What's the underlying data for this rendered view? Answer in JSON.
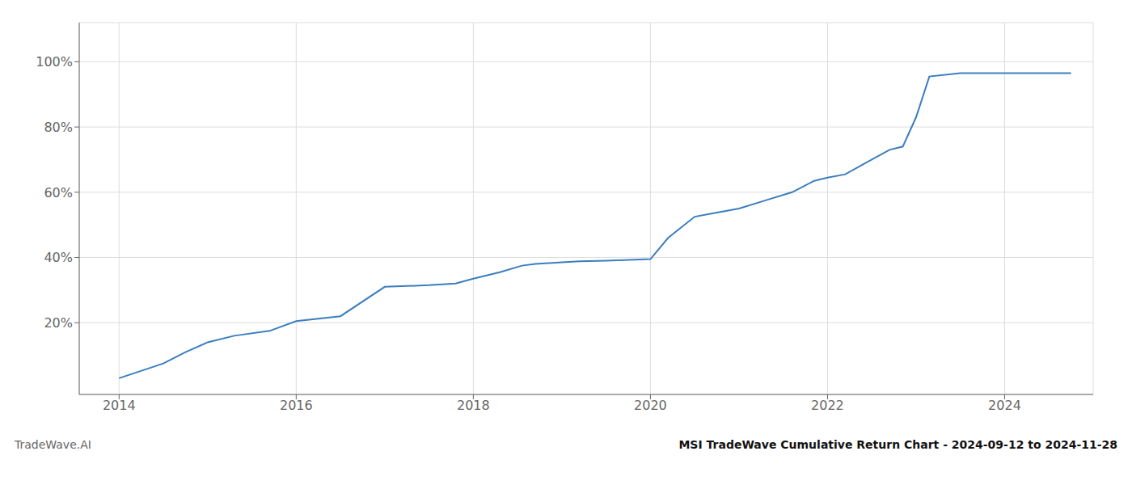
{
  "chart_data": {
    "type": "line",
    "title": "MSI TradeWave Cumulative Return Chart - 2024-09-12 to 2024-11-28",
    "annotations": [
      "TradeWave.AI"
    ],
    "x": [
      2014.0,
      2014.5,
      2014.75,
      2015.0,
      2015.3,
      2015.7,
      2016.0,
      2016.5,
      2017.0,
      2017.5,
      2017.8,
      2018.0,
      2018.3,
      2018.55,
      2018.7,
      2019.0,
      2019.2,
      2019.5,
      2019.7,
      2020.0,
      2020.2,
      2020.5,
      2020.7,
      2021.0,
      2021.3,
      2021.6,
      2021.85,
      2022.0,
      2022.2,
      2022.5,
      2022.7,
      2022.85,
      2023.0,
      2023.15,
      2023.5,
      2023.7,
      2024.0,
      2024.5,
      2024.75
    ],
    "values": [
      0.03,
      0.075,
      0.11,
      0.14,
      0.16,
      0.175,
      0.205,
      0.22,
      0.31,
      0.315,
      0.32,
      0.335,
      0.355,
      0.375,
      0.38,
      0.385,
      0.388,
      0.39,
      0.392,
      0.395,
      0.46,
      0.525,
      0.535,
      0.55,
      0.575,
      0.6,
      0.635,
      0.645,
      0.655,
      0.7,
      0.73,
      0.74,
      0.83,
      0.955,
      0.965,
      0.965,
      0.965,
      0.965,
      0.965
    ],
    "color": "#3a7ebf",
    "xlim": [
      2013.55,
      2025.0
    ],
    "ylim": [
      -0.02,
      1.12
    ],
    "xticks": [
      2014,
      2016,
      2018,
      2020,
      2022,
      2024
    ],
    "yticks": [
      {
        "value": 0.2,
        "label": "20%"
      },
      {
        "value": 0.4,
        "label": "40%"
      },
      {
        "value": 0.6,
        "label": "60%"
      },
      {
        "value": 0.8,
        "label": "80%"
      },
      {
        "value": 1.0,
        "label": "100%"
      }
    ],
    "grid": true
  }
}
